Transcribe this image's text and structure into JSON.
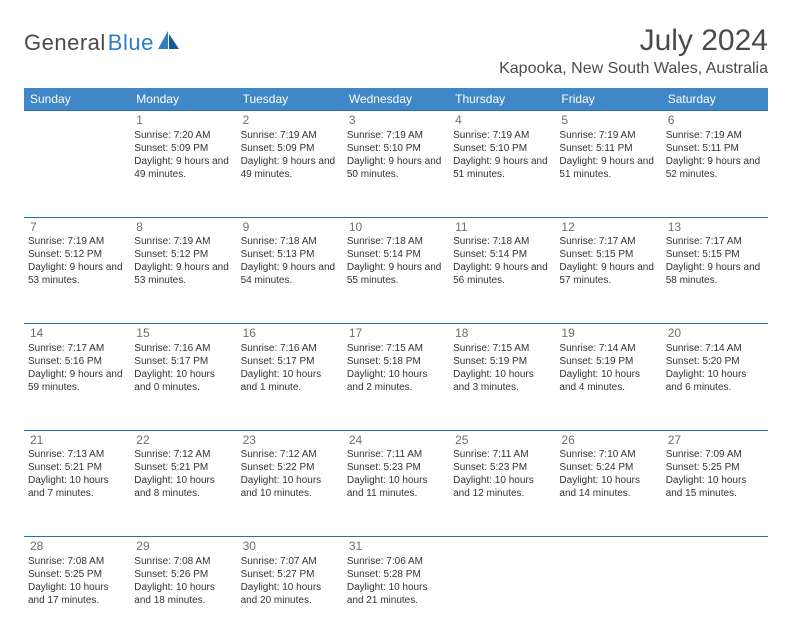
{
  "logo": {
    "text1": "General",
    "text2": "Blue"
  },
  "header": {
    "month": "July 2024",
    "location": "Kapooka, New South Wales, Australia"
  },
  "colors": {
    "header_bg": "#3f87c7",
    "header_fg": "#ffffff",
    "rule": "#2e6ea8",
    "logo_gray": "#4a4a4a",
    "logo_blue": "#2f7ec0",
    "text": "#333333",
    "daynum": "#6f6f6f"
  },
  "calendar": {
    "type": "table",
    "columns": [
      "Sunday",
      "Monday",
      "Tuesday",
      "Wednesday",
      "Thursday",
      "Friday",
      "Saturday"
    ],
    "first_weekday_index": 1,
    "days": [
      {
        "n": 1,
        "sunrise": "7:20 AM",
        "sunset": "5:09 PM",
        "daylight": "9 hours and 49 minutes."
      },
      {
        "n": 2,
        "sunrise": "7:19 AM",
        "sunset": "5:09 PM",
        "daylight": "9 hours and 49 minutes."
      },
      {
        "n": 3,
        "sunrise": "7:19 AM",
        "sunset": "5:10 PM",
        "daylight": "9 hours and 50 minutes."
      },
      {
        "n": 4,
        "sunrise": "7:19 AM",
        "sunset": "5:10 PM",
        "daylight": "9 hours and 51 minutes."
      },
      {
        "n": 5,
        "sunrise": "7:19 AM",
        "sunset": "5:11 PM",
        "daylight": "9 hours and 51 minutes."
      },
      {
        "n": 6,
        "sunrise": "7:19 AM",
        "sunset": "5:11 PM",
        "daylight": "9 hours and 52 minutes."
      },
      {
        "n": 7,
        "sunrise": "7:19 AM",
        "sunset": "5:12 PM",
        "daylight": "9 hours and 53 minutes."
      },
      {
        "n": 8,
        "sunrise": "7:19 AM",
        "sunset": "5:12 PM",
        "daylight": "9 hours and 53 minutes."
      },
      {
        "n": 9,
        "sunrise": "7:18 AM",
        "sunset": "5:13 PM",
        "daylight": "9 hours and 54 minutes."
      },
      {
        "n": 10,
        "sunrise": "7:18 AM",
        "sunset": "5:14 PM",
        "daylight": "9 hours and 55 minutes."
      },
      {
        "n": 11,
        "sunrise": "7:18 AM",
        "sunset": "5:14 PM",
        "daylight": "9 hours and 56 minutes."
      },
      {
        "n": 12,
        "sunrise": "7:17 AM",
        "sunset": "5:15 PM",
        "daylight": "9 hours and 57 minutes."
      },
      {
        "n": 13,
        "sunrise": "7:17 AM",
        "sunset": "5:15 PM",
        "daylight": "9 hours and 58 minutes."
      },
      {
        "n": 14,
        "sunrise": "7:17 AM",
        "sunset": "5:16 PM",
        "daylight": "9 hours and 59 minutes."
      },
      {
        "n": 15,
        "sunrise": "7:16 AM",
        "sunset": "5:17 PM",
        "daylight": "10 hours and 0 minutes."
      },
      {
        "n": 16,
        "sunrise": "7:16 AM",
        "sunset": "5:17 PM",
        "daylight": "10 hours and 1 minute."
      },
      {
        "n": 17,
        "sunrise": "7:15 AM",
        "sunset": "5:18 PM",
        "daylight": "10 hours and 2 minutes."
      },
      {
        "n": 18,
        "sunrise": "7:15 AM",
        "sunset": "5:19 PM",
        "daylight": "10 hours and 3 minutes."
      },
      {
        "n": 19,
        "sunrise": "7:14 AM",
        "sunset": "5:19 PM",
        "daylight": "10 hours and 4 minutes."
      },
      {
        "n": 20,
        "sunrise": "7:14 AM",
        "sunset": "5:20 PM",
        "daylight": "10 hours and 6 minutes."
      },
      {
        "n": 21,
        "sunrise": "7:13 AM",
        "sunset": "5:21 PM",
        "daylight": "10 hours and 7 minutes."
      },
      {
        "n": 22,
        "sunrise": "7:12 AM",
        "sunset": "5:21 PM",
        "daylight": "10 hours and 8 minutes."
      },
      {
        "n": 23,
        "sunrise": "7:12 AM",
        "sunset": "5:22 PM",
        "daylight": "10 hours and 10 minutes."
      },
      {
        "n": 24,
        "sunrise": "7:11 AM",
        "sunset": "5:23 PM",
        "daylight": "10 hours and 11 minutes."
      },
      {
        "n": 25,
        "sunrise": "7:11 AM",
        "sunset": "5:23 PM",
        "daylight": "10 hours and 12 minutes."
      },
      {
        "n": 26,
        "sunrise": "7:10 AM",
        "sunset": "5:24 PM",
        "daylight": "10 hours and 14 minutes."
      },
      {
        "n": 27,
        "sunrise": "7:09 AM",
        "sunset": "5:25 PM",
        "daylight": "10 hours and 15 minutes."
      },
      {
        "n": 28,
        "sunrise": "7:08 AM",
        "sunset": "5:25 PM",
        "daylight": "10 hours and 17 minutes."
      },
      {
        "n": 29,
        "sunrise": "7:08 AM",
        "sunset": "5:26 PM",
        "daylight": "10 hours and 18 minutes."
      },
      {
        "n": 30,
        "sunrise": "7:07 AM",
        "sunset": "5:27 PM",
        "daylight": "10 hours and 20 minutes."
      },
      {
        "n": 31,
        "sunrise": "7:06 AM",
        "sunset": "5:28 PM",
        "daylight": "10 hours and 21 minutes."
      }
    ],
    "labels": {
      "sunrise": "Sunrise:",
      "sunset": "Sunset:",
      "daylight": "Daylight:"
    }
  }
}
